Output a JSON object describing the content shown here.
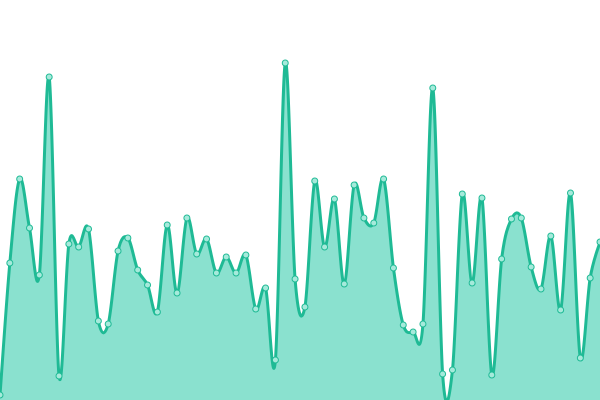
{
  "chart_data": {
    "type": "area",
    "categories": [
      null,
      null,
      null,
      null,
      null,
      null,
      null,
      null,
      null,
      null,
      null,
      null,
      null,
      null,
      null,
      null,
      null,
      null,
      null,
      null,
      null,
      null,
      null,
      null,
      null,
      null,
      null,
      null,
      null,
      null,
      null,
      null,
      null,
      null,
      null,
      null,
      null,
      null,
      null,
      null,
      null,
      null,
      null,
      null,
      null,
      null,
      null,
      null,
      null,
      null,
      null,
      null,
      null,
      null,
      null,
      null,
      null,
      null,
      null,
      null,
      null,
      null
    ],
    "values": [
      5,
      137,
      221,
      172,
      125,
      323,
      24,
      156,
      153,
      171,
      79,
      76,
      149,
      162,
      130,
      115,
      88,
      175,
      107,
      182,
      146,
      161,
      127,
      143,
      127,
      145,
      91,
      112,
      40,
      337,
      121,
      93,
      219,
      153,
      201,
      116,
      215,
      182,
      177,
      221,
      132,
      75,
      68,
      76,
      312,
      26,
      30,
      206,
      117,
      202,
      25,
      141,
      181,
      182,
      133,
      111,
      164,
      90,
      207,
      42,
      122,
      158
    ],
    "ylim": [
      0,
      400
    ],
    "color": "#1fba95",
    "fill_color": "#8ae1cf",
    "marker_fill": "#a6eadb"
  }
}
